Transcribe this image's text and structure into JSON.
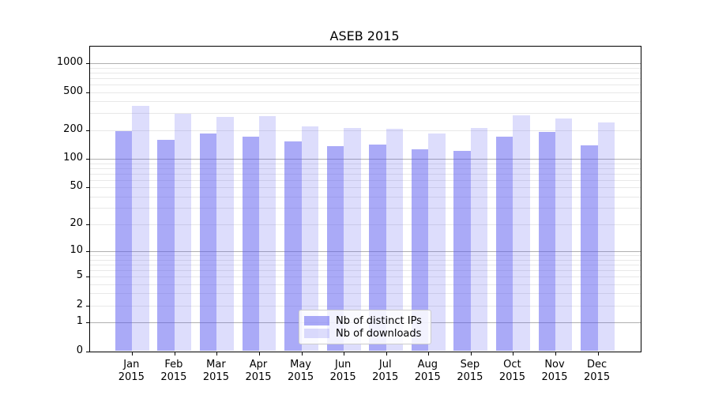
{
  "chart_data": {
    "type": "bar",
    "title": "ASEB 2015",
    "categories": [
      "Jan 2015",
      "Feb 2015",
      "Mar 2015",
      "Apr 2015",
      "May 2015",
      "Jun 2015",
      "Jul 2015",
      "Aug 2015",
      "Sep 2015",
      "Oct 2015",
      "Nov 2015",
      "Dec 2015"
    ],
    "series": [
      {
        "name": "Nb of distinct IPs",
        "color": "rgba(85,85,240,0.5)",
        "values": [
          197,
          158,
          184,
          172,
          151,
          136,
          142,
          127,
          121,
          171,
          191,
          138
        ]
      },
      {
        "name": "Nb of downloads",
        "color": "rgba(85,85,240,0.2)",
        "values": [
          360,
          298,
          275,
          281,
          219,
          210,
          205,
          184,
          210,
          284,
          264,
          239
        ]
      }
    ],
    "yscale": "log10(1+y)",
    "y_ticks": [
      0,
      1,
      2,
      5,
      10,
      20,
      50,
      100,
      200,
      500,
      1000
    ],
    "y_major_grid": [
      1,
      10,
      100,
      1000
    ],
    "y_minor_grid": [
      2,
      3,
      4,
      5,
      6,
      7,
      8,
      9,
      20,
      30,
      40,
      50,
      60,
      70,
      80,
      90,
      200,
      300,
      400,
      500,
      600,
      700,
      800,
      900
    ],
    "ylim": [
      0,
      1490
    ],
    "xlabel": "",
    "ylabel": "",
    "grid": true,
    "legend_position": "lower center",
    "colors": {
      "major_grid": "#b0b0b0",
      "minor_grid": "#e8e8e8",
      "spine": "#000000",
      "bar_base": "#5555f0"
    }
  }
}
